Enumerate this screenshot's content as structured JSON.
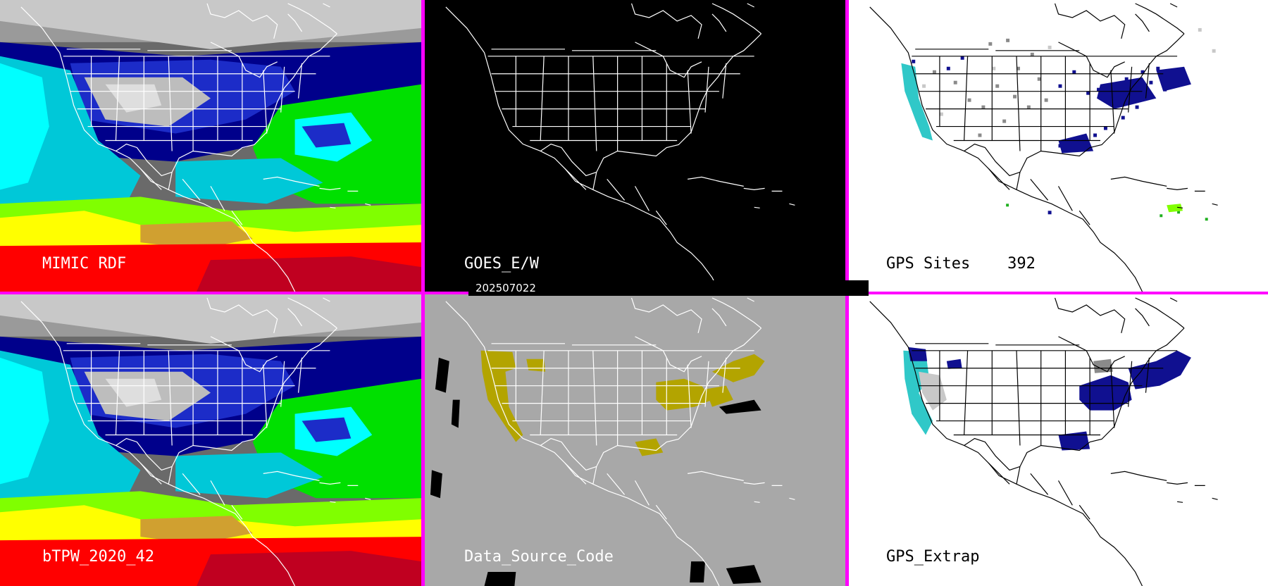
{
  "colors": {
    "divider": "#ff00ff",
    "tpw_scale": [
      "#3a3a3a",
      "#9a9a9a",
      "#d8d8d8",
      "#00008b",
      "#1c2cc8",
      "#00c8d8",
      "#00ffff",
      "#00e000",
      "#80ff00",
      "#ffff00",
      "#d0a030",
      "#ff0000",
      "#c00020"
    ],
    "data_source_fill": "#b3a400",
    "gps_blue": "#101090",
    "gps_cyan": "#30c8c8",
    "gray_panel_bg": "#a8a8a8"
  },
  "panels": {
    "top_left": {
      "label": "MIMIC RDF",
      "kind": "tpw-map"
    },
    "top_middle": {
      "label": "GOES_E/W",
      "kind": "outline-map-black"
    },
    "top_right": {
      "label": "GPS Sites    392",
      "kind": "gps-sites-map"
    },
    "bottom_left": {
      "label": "bTPW_2020_42",
      "kind": "tpw-map"
    },
    "bottom_middle": {
      "label": "Data_Source_Code",
      "kind": "data-source-map"
    },
    "bottom_right": {
      "label": "GPS_Extrap",
      "kind": "gps-extrap-map"
    }
  },
  "timestamp": "202507022"
}
